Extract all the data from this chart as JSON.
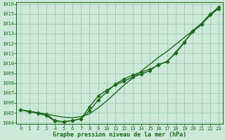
{
  "xlabel": "Graphe pression niveau de la mer (hPa)",
  "background_color": "#cce8d8",
  "grid_color": "#99c4aa",
  "line_color": "#1a6b1a",
  "ylim_min": 1004,
  "ylim_max": 1016,
  "xlim_min": 0,
  "xlim_max": 23,
  "yticks": [
    1004,
    1005,
    1006,
    1007,
    1008,
    1009,
    1010,
    1011,
    1012,
    1013,
    1014,
    1015,
    1016
  ],
  "xticks": [
    0,
    1,
    2,
    3,
    4,
    5,
    6,
    7,
    8,
    9,
    10,
    11,
    12,
    13,
    14,
    15,
    16,
    17,
    18,
    19,
    20,
    21,
    22,
    23
  ],
  "line1_y": [
    1005.3,
    1005.15,
    1005.0,
    1004.85,
    1004.7,
    1004.55,
    1004.5,
    1004.6,
    1004.9,
    1005.5,
    1006.2,
    1007.0,
    1007.8,
    1008.5,
    1009.2,
    1009.9,
    1010.6,
    1011.2,
    1011.9,
    1012.6,
    1013.3,
    1014.0,
    1014.8,
    1015.6
  ],
  "line2_y": [
    1005.3,
    1005.15,
    1005.0,
    1004.85,
    1004.2,
    1004.1,
    1004.2,
    1004.4,
    1005.2,
    1006.3,
    1007.1,
    1007.9,
    1008.4,
    1008.8,
    1009.1,
    1009.4,
    1009.8,
    1010.2,
    1011.0,
    1012.1,
    1013.3,
    1014.0,
    1015.0,
    1015.5
  ],
  "line3_y": [
    1005.3,
    1005.1,
    1004.95,
    1004.7,
    1004.15,
    1004.1,
    1004.2,
    1004.4,
    1005.6,
    1006.7,
    1007.3,
    1007.8,
    1008.2,
    1008.6,
    1008.9,
    1009.25,
    1009.9,
    1010.15,
    1011.1,
    1012.15,
    1013.2,
    1013.9,
    1014.9,
    1015.7
  ],
  "linewidth": 1.0,
  "markersize": 2.5,
  "marker": "D",
  "tick_fontsize": 5,
  "xlabel_fontsize": 6
}
